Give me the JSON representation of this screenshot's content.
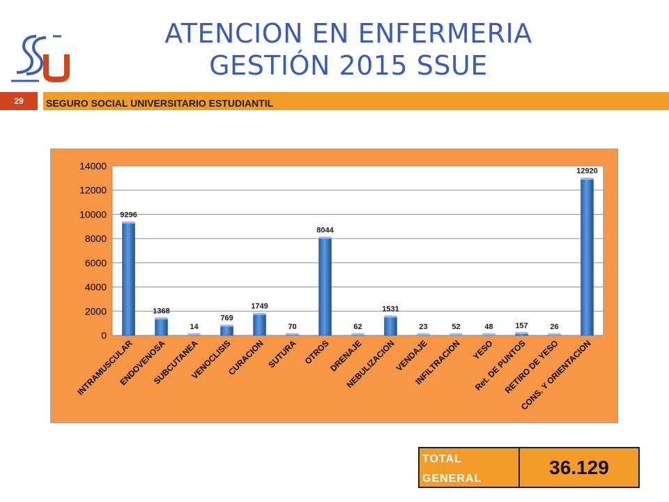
{
  "header": {
    "title_line1": "ATENCION EN ENFERMERIA",
    "title_line2": "GESTIÓN 2015 SSUE",
    "page_number": "29",
    "bar_text": "SEGURO SOCIAL UNIVERSITARIO ESTUDIANTIL"
  },
  "total": {
    "label": "TOTAL\nGENERAL",
    "value": "36.129"
  },
  "colors": {
    "title": "#3a5cb8",
    "header_bar": "#f39c2a",
    "page_badge": "#d0451c",
    "chart_background": "#f79646",
    "bar_fill": "#3a78c8"
  },
  "chart_data": {
    "type": "bar",
    "categories": [
      "INTRAMUSCULAR",
      "ENDOVENOSA",
      "SUBCUTANEA",
      "VENOCLISIS",
      "CURACION",
      "SUTURA",
      "OTROS",
      "DRENAJE",
      "NEBULIZACION",
      "VENDAJE",
      "INFILTRACION",
      "YESO",
      "Ret. DE PUNTOS",
      "RETIRO DE YESO",
      "CONS. Y ORIENTACION"
    ],
    "values": [
      9296,
      1368,
      14,
      769,
      1749,
      70,
      8044,
      62,
      1531,
      23,
      52,
      48,
      157,
      26,
      12920
    ],
    "data_labels": [
      "9296",
      "1368",
      "14",
      "769",
      "1749",
      "70",
      "8044",
      "62",
      "1531",
      "23",
      "52",
      "48",
      "157",
      "26",
      "12920"
    ],
    "yticks": [
      "0",
      "2000",
      "4000",
      "6000",
      "8000",
      "10000",
      "12000",
      "14000"
    ],
    "ylim": [
      0,
      14000
    ],
    "grid": true,
    "legend": "none"
  }
}
